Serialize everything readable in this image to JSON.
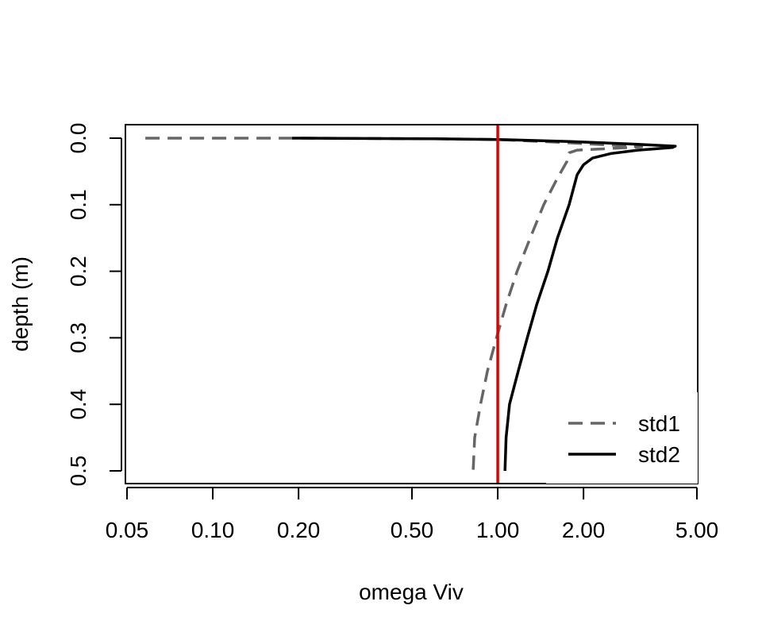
{
  "chart_data": {
    "type": "line",
    "title": "",
    "xlabel": "omega Viv",
    "ylabel": "depth (m)",
    "x_scale": "log",
    "xlim": [
      0.05,
      5
    ],
    "ylim": [
      0.5,
      0
    ],
    "y_reversed": true,
    "x_ticks": [
      0.05,
      0.1,
      0.2,
      0.5,
      1,
      2,
      5
    ],
    "x_tick_labels": [
      "0.05",
      "0.10",
      "0.20",
      "0.50",
      "1.00",
      "2.00",
      "5.00"
    ],
    "y_ticks": [
      0,
      0.1,
      0.2,
      0.3,
      0.4,
      0.5
    ],
    "y_tick_labels": [
      "0.0",
      "0.1",
      "0.2",
      "0.3",
      "0.4",
      "0.5"
    ],
    "grid": false,
    "legend_position": "bottom-right",
    "reference_line": {
      "axis": "x",
      "value": 1.0,
      "color": "#e00000"
    },
    "series": [
      {
        "name": "std1",
        "style": "dashed",
        "color": "#666666",
        "points": [
          [
            0.058,
            0.0
          ],
          [
            0.19,
            0.0
          ],
          [
            0.6,
            0.001
          ],
          [
            1.0,
            0.002
          ],
          [
            1.6,
            0.006
          ],
          [
            2.4,
            0.01
          ],
          [
            3.2,
            0.013
          ],
          [
            2.6,
            0.015
          ],
          [
            1.9,
            0.018
          ],
          [
            1.78,
            0.022
          ],
          [
            1.75,
            0.035
          ],
          [
            1.62,
            0.06
          ],
          [
            1.45,
            0.1
          ],
          [
            1.3,
            0.15
          ],
          [
            1.17,
            0.2
          ],
          [
            1.07,
            0.25
          ],
          [
            0.99,
            0.3
          ],
          [
            0.92,
            0.35
          ],
          [
            0.87,
            0.4
          ],
          [
            0.83,
            0.45
          ],
          [
            0.82,
            0.5
          ]
        ]
      },
      {
        "name": "std2",
        "style": "solid",
        "color": "#000000",
        "points": [
          [
            0.19,
            0.0
          ],
          [
            0.6,
            0.001
          ],
          [
            1.0,
            0.002
          ],
          [
            1.8,
            0.005
          ],
          [
            3.0,
            0.009
          ],
          [
            4.2,
            0.012
          ],
          [
            4.1,
            0.014
          ],
          [
            3.1,
            0.018
          ],
          [
            2.5,
            0.023
          ],
          [
            2.15,
            0.03
          ],
          [
            2.0,
            0.04
          ],
          [
            1.9,
            0.055
          ],
          [
            1.78,
            0.1
          ],
          [
            1.62,
            0.15
          ],
          [
            1.5,
            0.2
          ],
          [
            1.37,
            0.25
          ],
          [
            1.27,
            0.3
          ],
          [
            1.18,
            0.35
          ],
          [
            1.1,
            0.4
          ],
          [
            1.07,
            0.45
          ],
          [
            1.06,
            0.5
          ]
        ]
      }
    ]
  }
}
